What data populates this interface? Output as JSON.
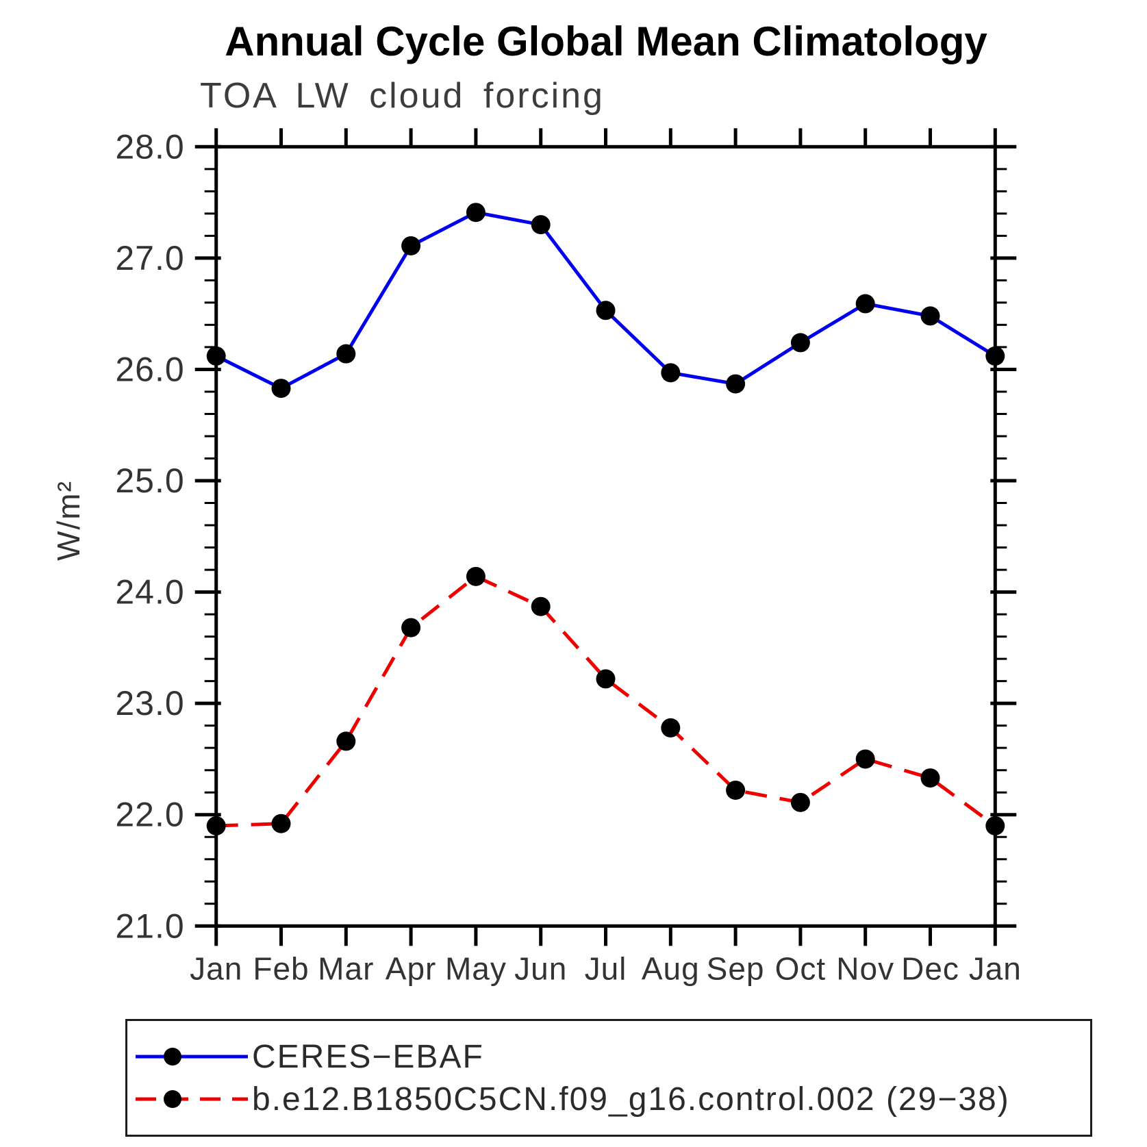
{
  "chart_data": {
    "type": "line",
    "title": "Annual Cycle Global Mean Climatology",
    "subtitle": "TOA LW cloud forcing",
    "ylabel": "W/m²",
    "x_tick_labels": [
      "Jan",
      "Feb",
      "Mar",
      "Apr",
      "May",
      "Jun",
      "Jul",
      "Aug",
      "Sep",
      "Oct",
      "Nov",
      "Dec",
      "Jan"
    ],
    "y_ticks": [
      21.0,
      22.0,
      23.0,
      24.0,
      25.0,
      26.0,
      27.0,
      28.0
    ],
    "y_tick_labels": [
      "21.0",
      "22.0",
      "23.0",
      "24.0",
      "25.0",
      "26.0",
      "27.0",
      "28.0"
    ],
    "ylim": [
      21.0,
      28.0
    ],
    "y_minor_step": 0.2,
    "grid": false,
    "legend_position": "bottom",
    "axis_color": "#000000",
    "label_color": "#333333",
    "series": [
      {
        "name": "CERES−EBAF",
        "color": "#0000ee",
        "style": "solid",
        "marker": "circle",
        "marker_color": "#000000",
        "values": [
          26.12,
          25.83,
          26.14,
          27.11,
          27.41,
          27.3,
          26.53,
          25.97,
          25.87,
          26.24,
          26.59,
          26.48,
          26.12
        ]
      },
      {
        "name": "b.e12.B1850C5CN.f09_g16.control.002 (29−38)",
        "color": "#ee0000",
        "style": "dashed",
        "marker": "circle",
        "marker_color": "#000000",
        "values": [
          21.9,
          21.92,
          22.66,
          23.68,
          24.14,
          23.87,
          23.22,
          22.78,
          22.22,
          22.11,
          22.5,
          22.33,
          21.9
        ]
      }
    ]
  }
}
